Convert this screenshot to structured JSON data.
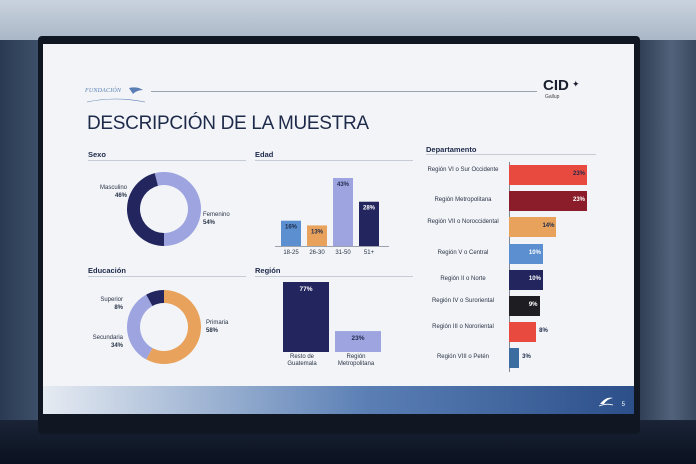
{
  "header": {
    "logo_left_text": "FUNDACIÓN",
    "logo_right_text": "CID",
    "logo_right_sub": "Gallup",
    "title": "DESCRIPCIÓN DE LA MUESTRA",
    "page_number": "5"
  },
  "colors": {
    "navy": "#22255e",
    "lavender": "#9da4e0",
    "orange": "#e8a25c",
    "light_blue": "#5b8fcf",
    "red": "#e94a3f",
    "maroon": "#8b1c2a",
    "dark": "#1d1d22",
    "steel_blue": "#3b6da1"
  },
  "chart_data": [
    {
      "type": "pie",
      "title": "Sexo",
      "slices": [
        {
          "label": "Masculino",
          "value": 46,
          "value_text": "46%",
          "color": "#22255e"
        },
        {
          "label": "Femenino",
          "value": 54,
          "value_text": "54%",
          "color": "#9da4e0"
        }
      ]
    },
    {
      "type": "bar",
      "title": "Edad",
      "categories": [
        "18-25",
        "26-30",
        "31-50",
        "51+"
      ],
      "values": [
        16,
        13,
        43,
        28
      ],
      "value_texts": [
        "16%",
        "13%",
        "43%",
        "28%"
      ],
      "colors": [
        "#5b8fcf",
        "#e8a25c",
        "#9da4e0",
        "#22255e"
      ],
      "ylim": [
        0,
        43
      ]
    },
    {
      "type": "pie",
      "title": "Educación",
      "slices": [
        {
          "label": "Primaria",
          "value": 58,
          "value_text": "58%",
          "color": "#e8a25c"
        },
        {
          "label": "Secundaria",
          "value": 34,
          "value_text": "34%",
          "color": "#9da4e0"
        },
        {
          "label": "Superior",
          "value": 8,
          "value_text": "8%",
          "color": "#22255e"
        }
      ]
    },
    {
      "type": "bar",
      "title": "Región",
      "categories": [
        "Resto de Guatemala",
        "Región Metropolitana"
      ],
      "values": [
        77,
        23
      ],
      "value_texts": [
        "77%",
        "23%"
      ],
      "colors": [
        "#22255e",
        "#9da4e0"
      ],
      "ylim": [
        0,
        77
      ]
    },
    {
      "type": "bar",
      "orientation": "horizontal",
      "title": "Departamento",
      "categories": [
        "Región VI o Sur Occidente",
        "Región Metropolitana",
        "Región VII o Noroccidental",
        "Región V o Central",
        "Región II o Norte",
        "Región IV o Suroriental",
        "Región III o Nororiental",
        "Región VIII o Petén"
      ],
      "values": [
        23,
        23,
        14,
        10,
        10,
        9,
        8,
        3
      ],
      "value_texts": [
        "23%",
        "23%",
        "14%",
        "10%",
        "10%",
        "9%",
        "8%",
        "3%"
      ],
      "colors": [
        "#e94a3f",
        "#8b1c2a",
        "#e8a25c",
        "#5b8fcf",
        "#22255e",
        "#1d1d22",
        "#e94a3f",
        "#3b6da1"
      ],
      "xlim": [
        0,
        23
      ]
    }
  ]
}
